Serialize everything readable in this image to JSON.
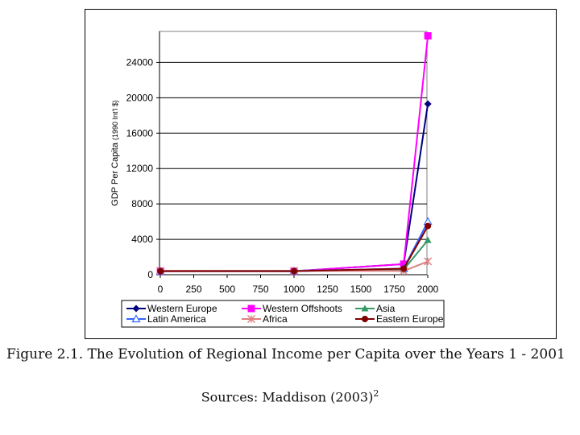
{
  "chart_data": {
    "type": "line",
    "xlabel": "",
    "ylabel": "GDP Per Capita",
    "ylabel_units": "(1990 Int'l $)",
    "x_ticks": [
      0,
      250,
      500,
      750,
      1000,
      1250,
      1500,
      1750,
      2000
    ],
    "y_ticks": [
      0,
      4000,
      8000,
      12000,
      16000,
      20000,
      24000
    ],
    "xlim": [
      0,
      2000
    ],
    "ylim": [
      0,
      27500
    ],
    "grid": "horizontal",
    "legend_position": "bottom",
    "series": [
      {
        "name": "Western Europe",
        "color": "#000080",
        "marker": "diamond",
        "x": [
          1,
          1000,
          1820,
          2001
        ],
        "y": [
          450,
          400,
          1200,
          19300
        ]
      },
      {
        "name": "Western Offshoots",
        "color": "#ff00ff",
        "marker": "square",
        "x": [
          1,
          1000,
          1820,
          2001
        ],
        "y": [
          400,
          400,
          1200,
          27000
        ]
      },
      {
        "name": "Asia",
        "color": "#339966",
        "marker": "triangle",
        "x": [
          1,
          1000,
          1820,
          2001
        ],
        "y": [
          450,
          450,
          580,
          3900
        ]
      },
      {
        "name": "Latin America",
        "color": "#3366ff",
        "marker": "triangle-open",
        "x": [
          1,
          1000,
          1820,
          2001
        ],
        "y": [
          400,
          400,
          700,
          6000
        ]
      },
      {
        "name": "Africa",
        "color": "#e08080",
        "marker": "star",
        "x": [
          1,
          1000,
          1820,
          2001
        ],
        "y": [
          450,
          430,
          420,
          1500
        ]
      },
      {
        "name": "Eastern Europe",
        "color": "#800000",
        "marker": "circle",
        "x": [
          1,
          1000,
          1820,
          2001
        ],
        "y": [
          400,
          400,
          680,
          5500
        ]
      }
    ]
  },
  "caption": "Figure 2.1. The Evolution of Regional Income per Capita over the Years 1 - 2001",
  "sources": {
    "text": "Sources: Maddison (2003)",
    "note": "2"
  }
}
